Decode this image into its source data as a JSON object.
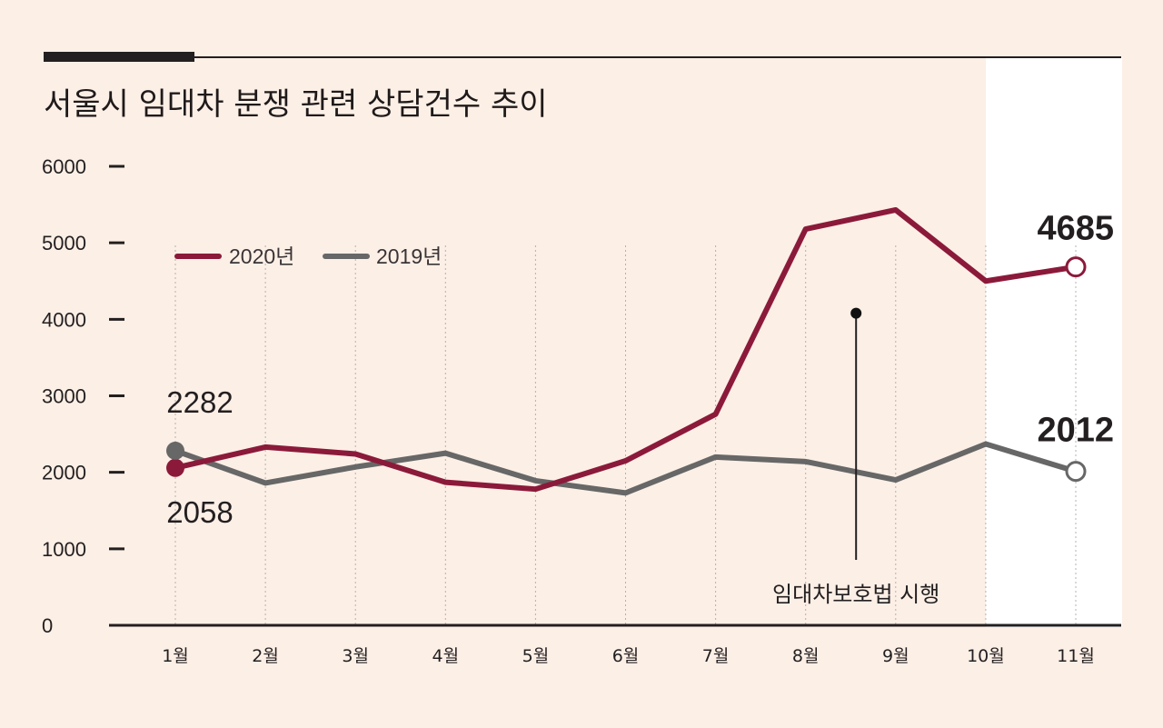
{
  "chart_data": {
    "type": "line",
    "title": "서울시 임대차 분쟁 관련 상담건수 추이",
    "categories": [
      "1월",
      "2월",
      "3월",
      "4월",
      "5월",
      "6월",
      "7월",
      "8월",
      "9월",
      "10월",
      "11월"
    ],
    "series": [
      {
        "name": "2020년",
        "color": "#8b1a3a",
        "values": [
          2058,
          2330,
          2240,
          1870,
          1780,
          2150,
          2760,
          5180,
          5430,
          4500,
          4685
        ]
      },
      {
        "name": "2019년",
        "color": "#676767",
        "values": [
          2282,
          1860,
          2070,
          2250,
          1890,
          1730,
          2200,
          2140,
          1900,
          2370,
          2012
        ]
      }
    ],
    "yticks": [
      0,
      1000,
      2000,
      3000,
      4000,
      5000,
      6000
    ],
    "ylim": [
      0,
      6000
    ],
    "grid": "vertical dotted",
    "legend": "upper-left",
    "data_labels": [
      {
        "text": "2282",
        "series": "2019년",
        "index": 0,
        "style": "normal"
      },
      {
        "text": "2058",
        "series": "2020년",
        "index": 0,
        "style": "normal"
      },
      {
        "text": "4685",
        "series": "2020년",
        "index": 10,
        "style": "bold"
      },
      {
        "text": "2012",
        "series": "2019년",
        "index": 10,
        "style": "bold"
      }
    ],
    "annotation": {
      "text": "임대차보호법 시행",
      "x_position": 7.6,
      "y_value": 4080
    },
    "highlight_last_category": true
  }
}
